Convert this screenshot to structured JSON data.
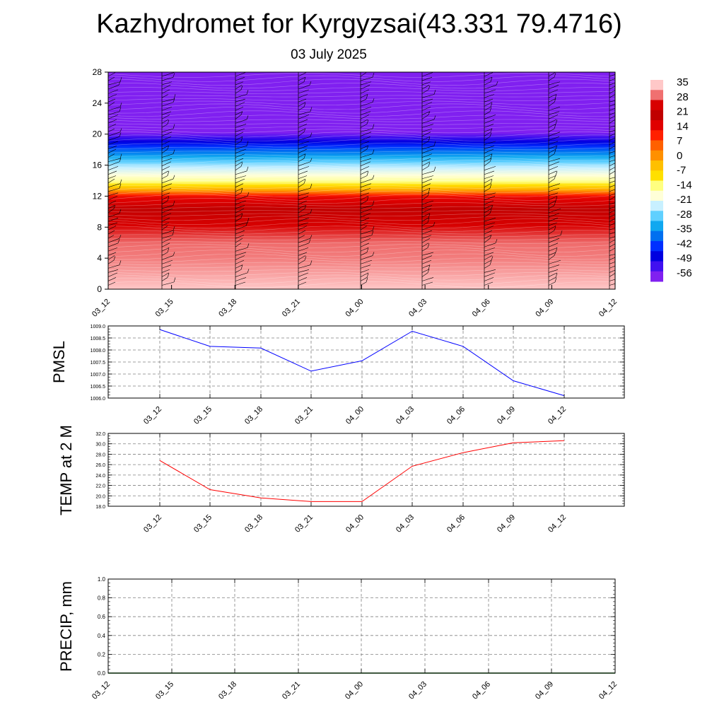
{
  "title": "Kazhydromet for Kyrgyzsai(43.331 79.4716)",
  "subtitle": "03 July 2025",
  "colors": {
    "pmsl_line": "#0000ff",
    "temp_line": "#ff0000",
    "precip_line": "#006400",
    "gridline": "#808080",
    "palette": [
      "#ffc8c8",
      "#f07070",
      "#d80000",
      "#c00000",
      "#e00000",
      "#ff2000",
      "#ff6000",
      "#ff9000",
      "#ffc000",
      "#ffe000",
      "#ffff80",
      "#ffffd8",
      "#c8f0ff",
      "#60d0ff",
      "#10a8f0",
      "#0070f0",
      "#0030ff",
      "#0000e0",
      "#4010f0",
      "#8020f0"
    ]
  },
  "chart_data": [
    {
      "type": "heatmap",
      "title": "",
      "xlabel": "",
      "ylabel": "",
      "x_tick_labels": [
        "03_12",
        "03_15",
        "03_18",
        "03_21",
        "04_00",
        "04_03",
        "04_06",
        "04_09",
        "04_12"
      ],
      "y_tick_labels": [
        "0",
        "4",
        "8",
        "12",
        "16",
        "20",
        "24",
        "28"
      ],
      "ylim": [
        0,
        28
      ],
      "colorbar": {
        "labels": [
          "35",
          "28",
          "21",
          "14",
          "7",
          "0",
          "-7",
          "-14",
          "-21",
          "-28",
          "-35",
          "-42",
          "-49",
          "-56"
        ],
        "values": [
          35,
          28,
          21,
          14,
          7,
          0,
          -7,
          -14,
          -21,
          -28,
          -35,
          -42,
          -49,
          -56
        ]
      },
      "profile": {
        "heights": [
          0,
          2,
          4,
          6,
          8,
          10,
          12,
          12.8,
          14,
          16,
          18,
          19.5,
          20.5,
          22,
          24,
          28
        ],
        "temperature": [
          35,
          33,
          31,
          30,
          26,
          22,
          14,
          0,
          -14,
          -24,
          -38,
          -50,
          -58,
          -56,
          -56,
          -56
        ]
      },
      "wind_barbs": true,
      "grid": false
    },
    {
      "type": "line",
      "ylabel": "PMSL",
      "x": [
        "03_12",
        "03_15",
        "03_18",
        "03_21",
        "04_00",
        "04_03",
        "04_06",
        "04_09",
        "04_12"
      ],
      "series": [
        {
          "values": [
            1008.85,
            1008.15,
            1008.08,
            1007.12,
            1007.55,
            1008.78,
            1008.15,
            1006.72,
            1006.1
          ]
        }
      ],
      "ylim": [
        1006.0,
        1009.0
      ],
      "y_tick_labels": [
        "1006.0",
        "1006.5",
        "1007.0",
        "1007.5",
        "1008.0",
        "1008.5",
        "1009.0"
      ],
      "grid": true
    },
    {
      "type": "line",
      "ylabel": "TEMP at 2 M",
      "x": [
        "03_12",
        "03_15",
        "03_18",
        "03_21",
        "04_00",
        "04_03",
        "04_06",
        "04_09",
        "04_12"
      ],
      "series": [
        {
          "values": [
            26.8,
            21.2,
            19.6,
            18.9,
            18.9,
            25.7,
            28.3,
            30.2,
            30.6
          ]
        }
      ],
      "ylim": [
        18.0,
        32.0
      ],
      "y_tick_labels": [
        "18.0",
        "20.0",
        "22.0",
        "24.0",
        "26.0",
        "28.0",
        "30.0",
        "32.0"
      ],
      "grid": true
    },
    {
      "type": "line",
      "ylabel": "PRECIP, mm",
      "x": [
        "03_12",
        "03_15",
        "03_18",
        "03_21",
        "04_00",
        "04_03",
        "04_06",
        "04_09",
        "04_12"
      ],
      "series": [
        {
          "values": [
            0,
            0,
            0,
            0,
            0,
            0,
            0,
            0,
            0
          ]
        }
      ],
      "ylim": [
        0.0,
        1.0
      ],
      "y_tick_labels": [
        "0.0",
        "0.2",
        "0.4",
        "0.6",
        "0.8",
        "1.0"
      ],
      "grid": true
    }
  ]
}
